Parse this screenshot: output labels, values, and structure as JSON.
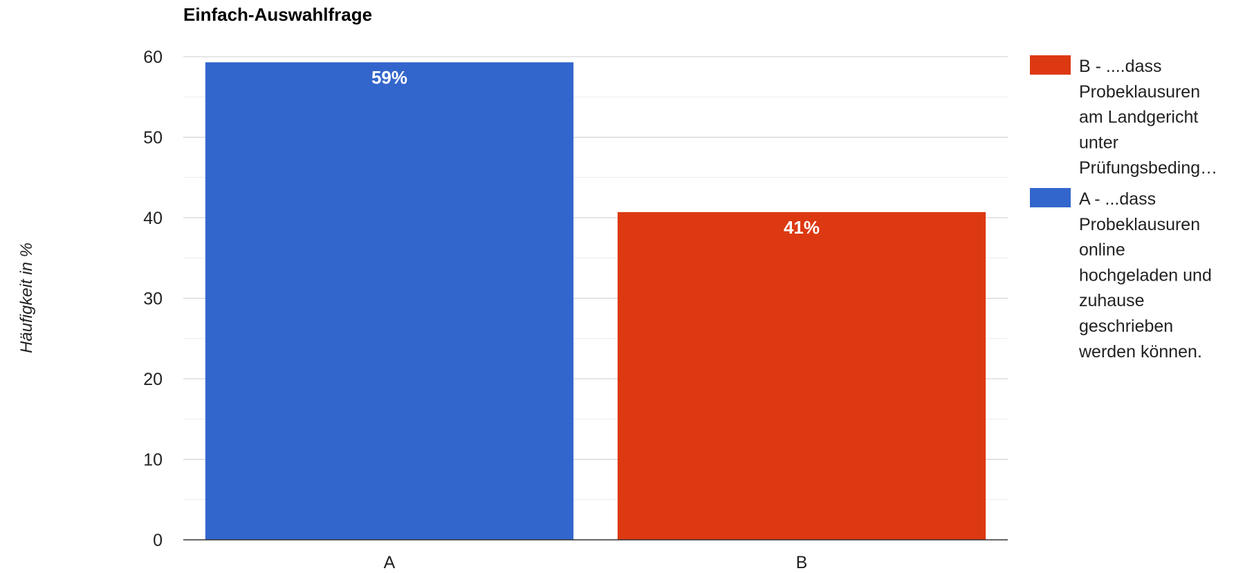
{
  "chart_data": {
    "type": "bar",
    "title": "Einfach-Auswahlfrage",
    "xlabel": "",
    "ylabel": "Häufigkeit in %",
    "categories": [
      "A",
      "B"
    ],
    "values": [
      59.3,
      40.7
    ],
    "data_labels": [
      "59%",
      "41%"
    ],
    "ylim": [
      0,
      60
    ],
    "yticks": [
      0,
      10,
      20,
      30,
      40,
      50,
      60
    ],
    "grid": true,
    "legend_position": "right",
    "legend": [
      {
        "label_lines": [
          "B - ....dass",
          "Probeklausuren",
          "am Landgericht",
          "unter",
          "Prüfungsbeding…"
        ],
        "color": "#dc3912"
      },
      {
        "label_lines": [
          "A - ...dass",
          "Probeklausuren",
          "online",
          "hochgeladen und",
          "zuhause",
          "geschrieben",
          "werden können."
        ],
        "color": "#3366cc"
      }
    ],
    "colors": [
      "#3366cc",
      "#dc3912"
    ]
  }
}
